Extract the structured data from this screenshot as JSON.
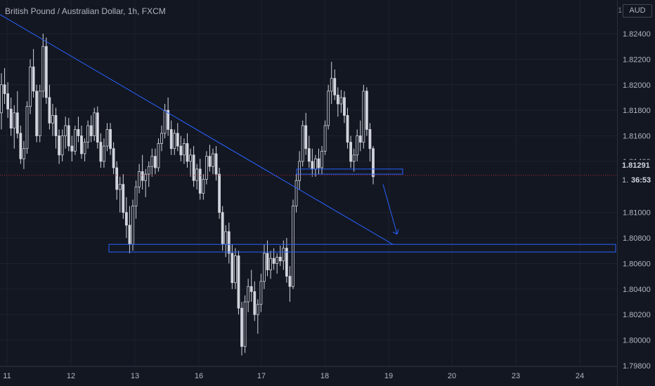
{
  "header": {
    "title": "British Pound / Australian Dollar, 1h, FXCM",
    "currency_label": "AUD",
    "currency_badge_value": "1"
  },
  "price_scale": {
    "current_price": "1.81291",
    "countdown": "36:53",
    "countdown_prefix": "1."
  },
  "colors": {
    "background": "#131722",
    "grid": "#1e222d",
    "text": "#b2b5be",
    "candle": "#d1d4dc",
    "drawing_blue": "#2962ff",
    "price_line": "#b22833"
  },
  "chart_data": {
    "type": "candlestick",
    "title": "British Pound / Australian Dollar, 1h, FXCM",
    "ylim": [
      1.797,
      1.8262
    ],
    "y_ticks": [
      "1.82400",
      "1.82200",
      "1.82000",
      "1.81800",
      "1.81600",
      "1.81400",
      "1.81291",
      "1.81000",
      "1.80800",
      "1.80600",
      "1.80400",
      "1.80200",
      "1.80000",
      "1.79800"
    ],
    "x_ticks": [
      "11",
      "12",
      "13",
      "16",
      "17",
      "18",
      "19",
      "20",
      "23",
      "24"
    ],
    "last_price": 1.81291,
    "candles": [
      [
        1.8178,
        1.8209,
        1.8165,
        1.82
      ],
      [
        1.82,
        1.8213,
        1.8185,
        1.8193
      ],
      [
        1.8193,
        1.8202,
        1.8174,
        1.8181
      ],
      [
        1.8181,
        1.819,
        1.816,
        1.8166
      ],
      [
        1.8166,
        1.8184,
        1.815,
        1.8178
      ],
      [
        1.8178,
        1.8195,
        1.8158,
        1.8162
      ],
      [
        1.8162,
        1.8168,
        1.8138,
        1.8142
      ],
      [
        1.8142,
        1.8156,
        1.8134,
        1.815
      ],
      [
        1.815,
        1.8187,
        1.8146,
        1.8183
      ],
      [
        1.8183,
        1.822,
        1.8177,
        1.8214
      ],
      [
        1.8214,
        1.8228,
        1.819,
        1.8195
      ],
      [
        1.8195,
        1.82,
        1.8155,
        1.816
      ],
      [
        1.816,
        1.82,
        1.8155,
        1.8195
      ],
      [
        1.8195,
        1.824,
        1.819,
        1.823
      ],
      [
        1.823,
        1.8237,
        1.8185,
        1.819
      ],
      [
        1.819,
        1.82,
        1.8165,
        1.817
      ],
      [
        1.817,
        1.8185,
        1.816,
        1.8176
      ],
      [
        1.8176,
        1.8182,
        1.815,
        1.816
      ],
      [
        1.816,
        1.8165,
        1.8138,
        1.8145
      ],
      [
        1.8145,
        1.8165,
        1.814,
        1.816
      ],
      [
        1.816,
        1.8175,
        1.815,
        1.8168
      ],
      [
        1.8168,
        1.8174,
        1.8148,
        1.8152
      ],
      [
        1.8152,
        1.816,
        1.814,
        1.8148
      ],
      [
        1.8148,
        1.8168,
        1.8145,
        1.8165
      ],
      [
        1.8165,
        1.8175,
        1.8155,
        1.816
      ],
      [
        1.816,
        1.8168,
        1.8142,
        1.8146
      ],
      [
        1.8146,
        1.8158,
        1.814,
        1.8155
      ],
      [
        1.8155,
        1.8172,
        1.815,
        1.8168
      ],
      [
        1.8168,
        1.8176,
        1.8155,
        1.816
      ],
      [
        1.816,
        1.8182,
        1.8156,
        1.8178
      ],
      [
        1.8178,
        1.8183,
        1.815,
        1.8155
      ],
      [
        1.8155,
        1.8162,
        1.8135,
        1.814
      ],
      [
        1.814,
        1.8158,
        1.8135,
        1.8152
      ],
      [
        1.8152,
        1.817,
        1.8148,
        1.8165
      ],
      [
        1.8165,
        1.817,
        1.8145,
        1.815
      ],
      [
        1.815,
        1.8155,
        1.813,
        1.8135
      ],
      [
        1.8135,
        1.814,
        1.811,
        1.8118
      ],
      [
        1.8118,
        1.8128,
        1.81,
        1.8122
      ],
      [
        1.8122,
        1.813,
        1.8095,
        1.81
      ],
      [
        1.81,
        1.8112,
        1.808,
        1.809
      ],
      [
        1.809,
        1.8105,
        1.8068,
        1.8075
      ],
      [
        1.8075,
        1.811,
        1.807,
        1.8105
      ],
      [
        1.8105,
        1.8125,
        1.8095,
        1.812
      ],
      [
        1.812,
        1.8138,
        1.8115,
        1.8132
      ],
      [
        1.8132,
        1.8145,
        1.8118,
        1.8125
      ],
      [
        1.8125,
        1.8134,
        1.8112,
        1.813
      ],
      [
        1.813,
        1.814,
        1.812,
        1.8136
      ],
      [
        1.8136,
        1.815,
        1.8128,
        1.8144
      ],
      [
        1.8144,
        1.815,
        1.813,
        1.8135
      ],
      [
        1.8135,
        1.8158,
        1.8132,
        1.8154
      ],
      [
        1.8154,
        1.8168,
        1.8148,
        1.8162
      ],
      [
        1.8162,
        1.8185,
        1.8158,
        1.818
      ],
      [
        1.818,
        1.819,
        1.816,
        1.8165
      ],
      [
        1.8165,
        1.8172,
        1.8145,
        1.815
      ],
      [
        1.815,
        1.8165,
        1.8145,
        1.8162
      ],
      [
        1.8162,
        1.817,
        1.8148,
        1.8152
      ],
      [
        1.8152,
        1.816,
        1.814,
        1.8145
      ],
      [
        1.8145,
        1.8158,
        1.8138,
        1.8154
      ],
      [
        1.8154,
        1.8162,
        1.8135,
        1.814
      ],
      [
        1.814,
        1.815,
        1.8128,
        1.8145
      ],
      [
        1.8145,
        1.8152,
        1.812,
        1.8125
      ],
      [
        1.8125,
        1.8138,
        1.8118,
        1.8134
      ],
      [
        1.8134,
        1.8142,
        1.811,
        1.8115
      ],
      [
        1.8115,
        1.813,
        1.811,
        1.8126
      ],
      [
        1.8126,
        1.8148,
        1.8122,
        1.8144
      ],
      [
        1.8144,
        1.8153,
        1.8132,
        1.8136
      ],
      [
        1.8136,
        1.815,
        1.813,
        1.8146
      ],
      [
        1.8146,
        1.8152,
        1.8125,
        1.813
      ],
      [
        1.813,
        1.8135,
        1.8095,
        1.81
      ],
      [
        1.81,
        1.8105,
        1.807,
        1.8075
      ],
      [
        1.8075,
        1.809,
        1.8065,
        1.8085
      ],
      [
        1.8085,
        1.8092,
        1.806,
        1.8068
      ],
      [
        1.8068,
        1.8075,
        1.804,
        1.8045
      ],
      [
        1.8045,
        1.8072,
        1.804,
        1.8066
      ],
      [
        1.8066,
        1.807,
        1.802,
        1.8025
      ],
      [
        1.8025,
        1.803,
        1.7988,
        1.7995
      ],
      [
        1.7995,
        1.8035,
        1.799,
        1.803
      ],
      [
        1.803,
        1.8048,
        1.8022,
        1.8042
      ],
      [
        1.8042,
        1.8055,
        1.803,
        1.8038
      ],
      [
        1.8038,
        1.8046,
        1.8015,
        1.802
      ],
      [
        1.802,
        1.8032,
        1.8005,
        1.8028
      ],
      [
        1.8028,
        1.8052,
        1.8022,
        1.8046
      ],
      [
        1.8046,
        1.8075,
        1.804,
        1.8068
      ],
      [
        1.8068,
        1.8078,
        1.805,
        1.8055
      ],
      [
        1.8055,
        1.807,
        1.8048,
        1.8064
      ],
      [
        1.8064,
        1.8072,
        1.8055,
        1.806
      ],
      [
        1.806,
        1.8068,
        1.8052,
        1.8065
      ],
      [
        1.8065,
        1.8074,
        1.8058,
        1.8062
      ],
      [
        1.8062,
        1.8078,
        1.8055,
        1.8072
      ],
      [
        1.8072,
        1.808,
        1.8045,
        1.805
      ],
      [
        1.805,
        1.8058,
        1.803,
        1.8042
      ],
      [
        1.8042,
        1.811,
        1.804,
        1.8105
      ],
      [
        1.8105,
        1.813,
        1.81,
        1.8125
      ],
      [
        1.8125,
        1.8148,
        1.8118,
        1.814
      ],
      [
        1.814,
        1.8172,
        1.8136,
        1.8168
      ],
      [
        1.8168,
        1.8178,
        1.8145,
        1.815
      ],
      [
        1.815,
        1.816,
        1.8135,
        1.814
      ],
      [
        1.814,
        1.815,
        1.8128,
        1.8134
      ],
      [
        1.8134,
        1.8145,
        1.8128,
        1.8142
      ],
      [
        1.8142,
        1.815,
        1.813,
        1.8135
      ],
      [
        1.8135,
        1.8152,
        1.813,
        1.8148
      ],
      [
        1.8148,
        1.8172,
        1.8145,
        1.8168
      ],
      [
        1.8168,
        1.82,
        1.8165,
        1.8195
      ],
      [
        1.8195,
        1.8218,
        1.8185,
        1.8205
      ],
      [
        1.8205,
        1.8212,
        1.8188,
        1.8192
      ],
      [
        1.8192,
        1.8198,
        1.8175,
        1.8185
      ],
      [
        1.8185,
        1.8196,
        1.8178,
        1.819
      ],
      [
        1.819,
        1.8195,
        1.817,
        1.8176
      ],
      [
        1.8176,
        1.8182,
        1.815,
        1.8155
      ],
      [
        1.8155,
        1.816,
        1.8135,
        1.814
      ],
      [
        1.814,
        1.815,
        1.8132,
        1.8145
      ],
      [
        1.8145,
        1.8165,
        1.814,
        1.816
      ],
      [
        1.816,
        1.8172,
        1.8148,
        1.8155
      ],
      [
        1.8155,
        1.82,
        1.815,
        1.8195
      ],
      [
        1.8195,
        1.8198,
        1.816,
        1.8165
      ],
      [
        1.8165,
        1.817,
        1.814,
        1.815
      ],
      [
        1.815,
        1.8152,
        1.8122,
        1.8128
      ]
    ],
    "trendline": {
      "from": [
        "start",
        1.8255
      ],
      "to": [
        "19",
        1.8075
      ]
    },
    "support_zone": {
      "from": "12",
      "to": "right-edge",
      "low": 1.8069,
      "high": 1.8075
    },
    "resistance_zone": {
      "from": "17",
      "to": "19",
      "low": 1.813,
      "high": 1.8134
    },
    "projection_arrow": {
      "from": 1.8122,
      "to": 1.8083
    }
  }
}
